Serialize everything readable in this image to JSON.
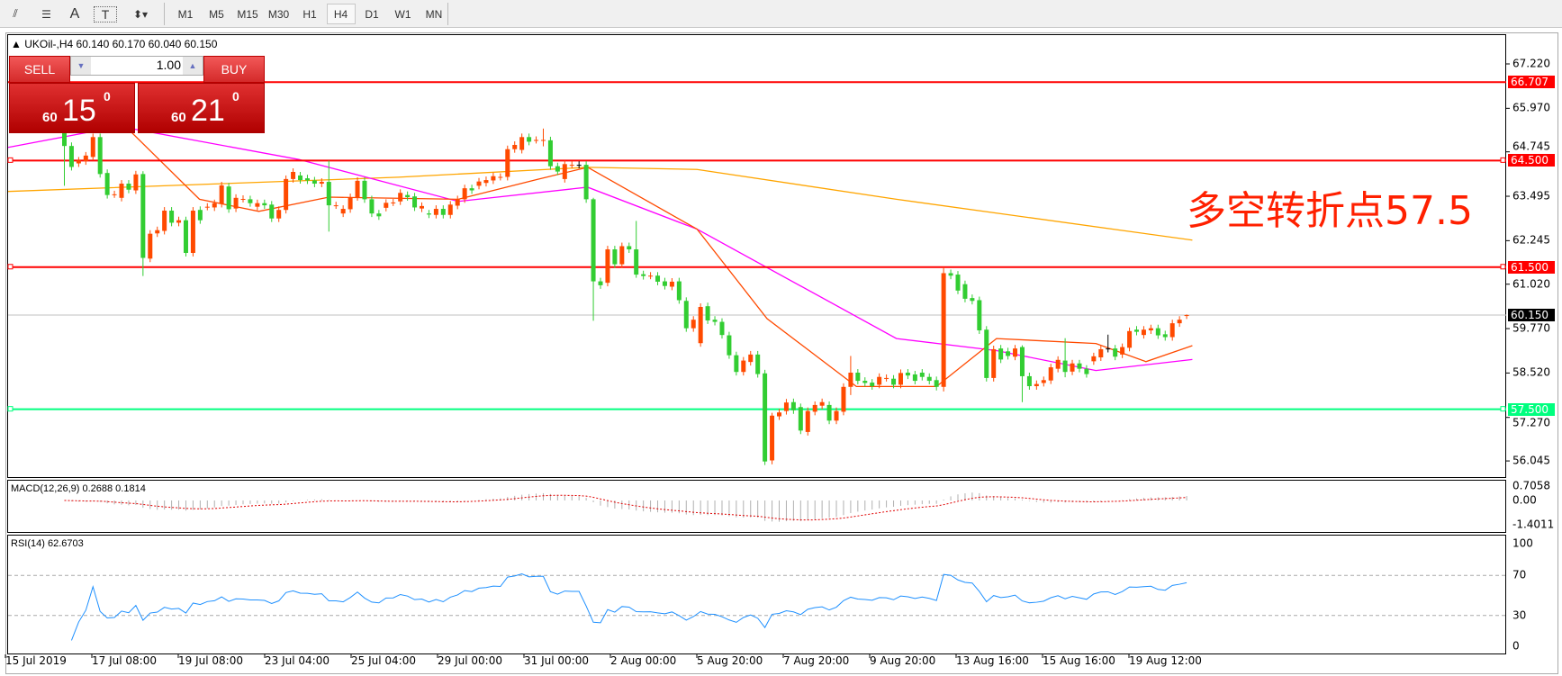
{
  "toolbar": {
    "tools": [
      "fibo-expansion-icon",
      "fibo-fan-icon",
      "text-icon",
      "text-label-icon",
      "arrows-icon"
    ],
    "timeframes": [
      "M1",
      "M5",
      "M15",
      "M30",
      "H1",
      "H4",
      "D1",
      "W1",
      "MN"
    ],
    "active_timeframe": "H4"
  },
  "chart": {
    "symbol_line": "UKOil-,H4  60.140 60.170 60.040 60.150",
    "colors": {
      "up": "#ff4a00",
      "down": "#32cd32",
      "ma_fast": "#ff4a00",
      "ma_mid": "#ff00ff",
      "ma_slow": "#ffa500",
      "resistance": "#ff0000",
      "support": "#00ff7f"
    },
    "annotation": "多空转折点57.5",
    "price_labels": [
      "67.220",
      "65.970",
      "64.745",
      "63.495",
      "62.245",
      "61.020",
      "59.770",
      "58.520",
      "57.270",
      "56.045"
    ],
    "price_values": [
      67.22,
      65.97,
      64.745,
      63.495,
      62.245,
      61.02,
      59.77,
      58.52,
      57.27,
      56.045
    ],
    "levels": [
      {
        "label": "66.707",
        "value": 66.707,
        "color": "#ff0000"
      },
      {
        "label": "64.500",
        "value": 64.5,
        "color": "#ff0000"
      },
      {
        "label": "61.500",
        "value": 61.5,
        "color": "#ff0000"
      },
      {
        "label": "57.500",
        "value": 57.5,
        "color": "#00ff7f"
      }
    ],
    "current": {
      "label": "60.150",
      "value": 60.15
    },
    "time_labels": [
      "15 Jul 2019",
      "17 Jul 08:00",
      "19 Jul 08:00",
      "23 Jul 04:00",
      "25 Jul 04:00",
      "29 Jul 00:00",
      "31 Jul 00:00",
      "2 Aug 00:00",
      "5 Aug 20:00",
      "7 Aug 20:00",
      "9 Aug 20:00",
      "13 Aug 16:00",
      "15 Aug 16:00",
      "19 Aug 12:00"
    ],
    "candles": [
      [
        65.5,
        64.91,
        65.6,
        63.79
      ],
      [
        64.91,
        64.32
      ],
      [
        64.42,
        64.5
      ],
      [
        64.48,
        64.64
      ],
      [
        64.6,
        65.16
      ],
      [
        65.16,
        64.12
      ],
      [
        64.15,
        63.53
      ],
      [
        63.55,
        63.55
      ],
      [
        63.45,
        63.85
      ],
      [
        63.85,
        63.68
      ],
      [
        63.66,
        64.11
      ],
      [
        64.12,
        61.76,
        64.2,
        61.25
      ],
      [
        61.74,
        62.44
      ],
      [
        62.45,
        62.54
      ],
      [
        62.52,
        63.09
      ],
      [
        63.09,
        62.75
      ],
      [
        62.75,
        62.82
      ],
      [
        62.82,
        61.9
      ],
      [
        61.9,
        63.09
      ],
      [
        63.11,
        62.82
      ],
      [
        63.2,
        63.2
      ],
      [
        63.18,
        63.3
      ],
      [
        63.28,
        63.8
      ],
      [
        63.77,
        63.13
      ],
      [
        63.15,
        63.45
      ],
      [
        63.42,
        63.42
      ],
      [
        63.41,
        63.3
      ],
      [
        63.2,
        63.3
      ],
      [
        63.3,
        63.24
      ],
      [
        63.26,
        62.87
      ],
      [
        62.87,
        63.11
      ],
      [
        63.11,
        63.98
      ],
      [
        63.98,
        64.18
      ],
      [
        64.08,
        63.95
      ],
      [
        64.0,
        63.94
      ],
      [
        63.94,
        63.85
      ],
      [
        63.85,
        63.9
      ],
      [
        63.9,
        63.24,
        64.5,
        62.5
      ],
      [
        63.24,
        63.24
      ],
      [
        63.01,
        63.14
      ],
      [
        63.13,
        63.47
      ],
      [
        63.47,
        63.93
      ],
      [
        63.93,
        63.41
      ],
      [
        63.41,
        63.01
      ],
      [
        63.01,
        62.93
      ],
      [
        63.17,
        63.31
      ],
      [
        63.32,
        63.32
      ],
      [
        63.35,
        63.59
      ],
      [
        63.53,
        63.47
      ],
      [
        63.49,
        63.18
      ],
      [
        63.15,
        63.22
      ],
      [
        63.01,
        62.98
      ],
      [
        62.97,
        63.14
      ],
      [
        63.14,
        62.97
      ],
      [
        62.97,
        63.26
      ],
      [
        63.23,
        63.41
      ],
      [
        63.41,
        63.72
      ],
      [
        63.72,
        63.66
      ],
      [
        63.79,
        63.91
      ],
      [
        63.87,
        63.95
      ],
      [
        63.94,
        64.06
      ],
      [
        64.04,
        64.04
      ],
      [
        64.04,
        64.82
      ],
      [
        64.82,
        64.94
      ],
      [
        64.8,
        65.16
      ],
      [
        65.16,
        65.03
      ],
      [
        65.08,
        65.08
      ],
      [
        65.08,
        65.08,
        65.4,
        64.9
      ],
      [
        65.07,
        64.34
      ],
      [
        64.34,
        64.19
      ],
      [
        63.98,
        64.4
      ],
      [
        64.38,
        64.38
      ],
      [
        64.38,
        64.38
      ],
      [
        64.38,
        63.41
      ],
      [
        63.41,
        61.1,
        63.45,
        59.99
      ],
      [
        61.1,
        60.99
      ],
      [
        61.06,
        62.0
      ],
      [
        62.0,
        61.58
      ],
      [
        61.58,
        62.09
      ],
      [
        62.09,
        62.0
      ],
      [
        62.0,
        61.29,
        62.8,
        61.2
      ],
      [
        61.3,
        61.25
      ],
      [
        61.26,
        61.26
      ],
      [
        61.26,
        61.09
      ],
      [
        61.1,
        60.97
      ],
      [
        60.95,
        61.09
      ],
      [
        61.1,
        60.57
      ],
      [
        60.55,
        59.78
      ],
      [
        59.78,
        60.02
      ],
      [
        59.36,
        60.38
      ],
      [
        60.4,
        60.0
      ],
      [
        60.02,
        59.96
      ],
      [
        59.96,
        59.59
      ],
      [
        59.58,
        59.02
      ],
      [
        59.02,
        58.55
      ],
      [
        58.55,
        58.87
      ],
      [
        58.83,
        59.04
      ],
      [
        59.04,
        58.49
      ],
      [
        58.51,
        56.03
      ],
      [
        56.06,
        57.32,
        57.4,
        55.95
      ],
      [
        57.3,
        57.41
      ],
      [
        57.45,
        57.69
      ],
      [
        57.7,
        57.47
      ],
      [
        57.56,
        56.9
      ],
      [
        56.86,
        57.45
      ],
      [
        57.43,
        57.62
      ],
      [
        57.6,
        57.7
      ],
      [
        57.62,
        57.18
      ],
      [
        57.18,
        57.45
      ],
      [
        57.43,
        58.13
      ],
      [
        58.13,
        58.53,
        59.0,
        57.9
      ],
      [
        58.53,
        58.3
      ],
      [
        58.3,
        58.24
      ],
      [
        58.25,
        58.15
      ],
      [
        58.19,
        58.41
      ],
      [
        58.38,
        58.38
      ],
      [
        58.36,
        58.19
      ],
      [
        58.19,
        58.52
      ],
      [
        58.53,
        58.45
      ],
      [
        58.48,
        58.3
      ],
      [
        58.53,
        58.41
      ],
      [
        58.41,
        58.3
      ],
      [
        58.32,
        58.13
      ],
      [
        58.13,
        61.33,
        61.5,
        58.0
      ],
      [
        61.33,
        61.26
      ],
      [
        61.29,
        60.84
      ],
      [
        61.02,
        60.61
      ],
      [
        60.63,
        60.55
      ],
      [
        60.57,
        59.72
      ],
      [
        59.74,
        58.38
      ],
      [
        58.38,
        59.19
      ],
      [
        59.21,
        58.9
      ],
      [
        59.13,
        59.0
      ],
      [
        58.98,
        59.21
      ],
      [
        59.25,
        58.43,
        59.3,
        57.7
      ],
      [
        58.43,
        58.15
      ],
      [
        58.15,
        58.21
      ],
      [
        58.24,
        58.32
      ],
      [
        58.31,
        58.68
      ],
      [
        58.64,
        58.89
      ],
      [
        58.87,
        58.55,
        59.5,
        58.4
      ],
      [
        58.56,
        58.79
      ],
      [
        58.79,
        58.64
      ],
      [
        58.64,
        58.49
      ],
      [
        58.85,
        58.99
      ],
      [
        58.96,
        59.19
      ],
      [
        59.21,
        59.21,
        59.6,
        59.1
      ],
      [
        59.21,
        58.98
      ],
      [
        59.04,
        59.25
      ],
      [
        59.23,
        59.7
      ],
      [
        59.74,
        59.68
      ],
      [
        59.59,
        59.74
      ],
      [
        59.72,
        59.78
      ],
      [
        59.78,
        59.58
      ],
      [
        59.61,
        59.53
      ],
      [
        59.53,
        59.92
      ],
      [
        59.92,
        60.02
      ],
      [
        60.14,
        60.15,
        60.17,
        60.04
      ]
    ],
    "ma_fast": [
      [
        8.5,
        65.47
      ],
      [
        18.9,
        63.41
      ],
      [
        27.2,
        63.07
      ],
      [
        37,
        63.47
      ],
      [
        55.1,
        63.41
      ],
      [
        66.2,
        63.97
      ],
      [
        73.2,
        64.31
      ],
      [
        88.5,
        62.57
      ],
      [
        98.3,
        60.05
      ],
      [
        110.8,
        58.14
      ],
      [
        122,
        58.14
      ],
      [
        130.4,
        59.49
      ],
      [
        144.3,
        59.35
      ],
      [
        151.3,
        58.84
      ],
      [
        157.8,
        59.29
      ]
    ],
    "ma_mid": [
      [
        -8.3,
        64.87
      ],
      [
        7.7,
        65.46
      ],
      [
        32.8,
        64.53
      ],
      [
        55.1,
        63.35
      ],
      [
        73.2,
        63.75
      ],
      [
        88.5,
        62.57
      ],
      [
        116.4,
        59.49
      ],
      [
        130.4,
        59.15
      ],
      [
        144.3,
        58.59
      ],
      [
        157.8,
        58.9
      ]
    ],
    "ma_slow": [
      [
        -8.3,
        63.63
      ],
      [
        46.7,
        64.03
      ],
      [
        73.2,
        64.31
      ],
      [
        88.5,
        64.25
      ],
      [
        116.4,
        63.41
      ],
      [
        157.8,
        62.26
      ]
    ]
  },
  "trade_panel": {
    "sell_label": "SELL",
    "buy_label": "BUY",
    "lot": "1.00",
    "sell_price": {
      "prefix": "60",
      "main": "15",
      "sup": "0"
    },
    "buy_price": {
      "prefix": "60",
      "main": "21",
      "sup": "0"
    }
  },
  "macd": {
    "title": "MACD(12,26,9) 0.2688 0.1814",
    "labels": [
      "0.7058",
      "0.00",
      "-1.4011"
    ]
  },
  "rsi": {
    "title": "RSI(14) 62.6703",
    "labels": [
      "100",
      "70",
      "30",
      "0"
    ],
    "levels": [
      70,
      30
    ],
    "color": "#1e90ff"
  }
}
